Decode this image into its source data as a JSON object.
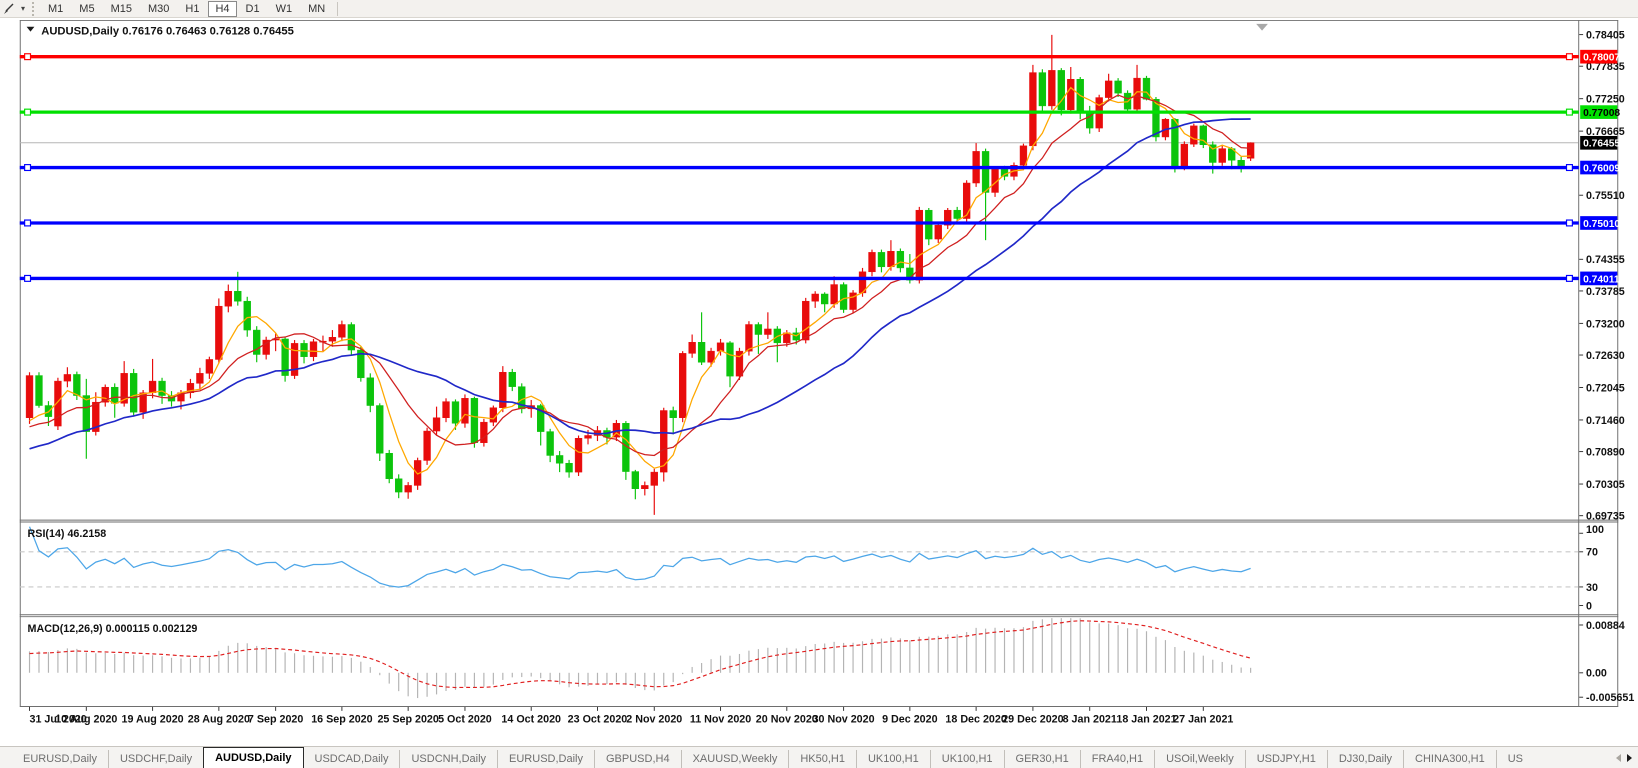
{
  "toolbar": {
    "timeframes": [
      "M1",
      "M5",
      "M15",
      "M30",
      "H1",
      "H4",
      "D1",
      "W1",
      "MN"
    ],
    "active_timeframe": "H4"
  },
  "chart": {
    "symbol_title": "AUDUSD,Daily  0.76176 0.76463 0.76128 0.76455",
    "symbol": "AUDUSD,Daily",
    "open": "0.76176",
    "high": "0.76463",
    "low": "0.76128",
    "close": "0.76455"
  },
  "price_axis": {
    "ticks": [
      "0.78405",
      "0.77835",
      "0.77250",
      "0.76665",
      "0.75510",
      "0.74355",
      "0.73785",
      "0.73200",
      "0.72630",
      "0.72045",
      "0.71460",
      "0.70890",
      "0.70305",
      "0.69735"
    ],
    "current_price_label": "0.76455"
  },
  "levels": [
    {
      "name": "resistance-1",
      "price": 0.78007,
      "label": "0.78007",
      "color": "#fe0000",
      "text_color": "#ffffff"
    },
    {
      "name": "resistance-2",
      "price": 0.77008,
      "label": "0.77008",
      "color": "#00e000",
      "text_color": "#000000"
    },
    {
      "name": "support-1",
      "price": 0.76009,
      "label": "0.76009",
      "color": "#0000fe",
      "text_color": "#ffffff"
    },
    {
      "name": "support-2",
      "price": 0.7501,
      "label": "0.75010",
      "color": "#0000fe",
      "text_color": "#ffffff"
    },
    {
      "name": "support-3",
      "price": 0.74011,
      "label": "0.74011",
      "color": "#0000fe",
      "text_color": "#ffffff"
    }
  ],
  "time_axis": {
    "labels": [
      {
        "label": "31 Jul 2020",
        "index": 0
      },
      {
        "label": "10 Aug 2020",
        "index": 6
      },
      {
        "label": "19 Aug 2020",
        "index": 13
      },
      {
        "label": "28 Aug 2020",
        "index": 20
      },
      {
        "label": "7 Sep 2020",
        "index": 26
      },
      {
        "label": "16 Sep 2020",
        "index": 33
      },
      {
        "label": "25 Sep 2020",
        "index": 40
      },
      {
        "label": "5 Oct 2020",
        "index": 46
      },
      {
        "label": "14 Oct 2020",
        "index": 53
      },
      {
        "label": "23 Oct 2020",
        "index": 60
      },
      {
        "label": "2 Nov 2020",
        "index": 66
      },
      {
        "label": "11 Nov 2020",
        "index": 73
      },
      {
        "label": "20 Nov 2020",
        "index": 80
      },
      {
        "label": "30 Nov 2020",
        "index": 86
      },
      {
        "label": "9 Dec 2020",
        "index": 93
      },
      {
        "label": "18 Dec 2020",
        "index": 100
      },
      {
        "label": "29 Dec 2020",
        "index": 106
      },
      {
        "label": "8 Jan 2021",
        "index": 112
      },
      {
        "label": "18 Jan 2021",
        "index": 118
      },
      {
        "label": "27 Jan 2021",
        "index": 124
      }
    ]
  },
  "rsi_panel": {
    "label": "RSI(14) 46.2158",
    "indicator": "RSI",
    "period": 14,
    "value": "46.2158",
    "axis_labels": [
      "100",
      "70",
      "30",
      "0"
    ],
    "upper_level": 70,
    "lower_level": 30
  },
  "macd_panel": {
    "label": "MACD(12,26,9) 0.000115 0.002129",
    "indicator": "MACD",
    "params": "12,26,9",
    "macd_value": "0.000115",
    "signal_value": "0.002129",
    "axis_labels": [
      "0.00884",
      "0.00",
      "-0.005651"
    ]
  },
  "tabs": {
    "items": [
      "EURUSD,Daily",
      "USDCHF,Daily",
      "AUDUSD,Daily",
      "USDCAD,Daily",
      "USDCNH,Daily",
      "EURUSD,Daily",
      "GBPUSD,H4",
      "XAUUSD,Weekly",
      "HK50,H1",
      "UK100,H1",
      "UK100,H1",
      "GER30,H1",
      "FRA40,H1",
      "USOil,Weekly",
      "USDJPY,H1",
      "DJ30,Daily",
      "CHINA300,H1",
      "US"
    ],
    "active_index": 2
  },
  "colors": {
    "bull": "#e80c0c",
    "bear": "#0cc40c",
    "ma_fast": "#ffa800",
    "ma_medium": "#d02020",
    "ma_slow": "#2028c8",
    "rsi_line": "#4da6e8",
    "rsi_levels": "#c8c8c8",
    "macd_histogram": "#b4b4b4",
    "macd_signal": "#e02020",
    "price_line": "#b6b6b6",
    "price_label_bg": "#000000",
    "panel_border": "#6e6e6e"
  },
  "chart_data": {
    "type": "candlestick",
    "title": "AUDUSD Daily",
    "symbol": "AUDUSD",
    "timeframe": "Daily",
    "color_convention": "red = bullish (up), green = bearish (down)",
    "price_range": [
      0.69735,
      0.78405
    ],
    "horizontal_lines": [
      0.78007,
      0.77008,
      0.76009,
      0.7501,
      0.74011
    ],
    "current_price": 0.76455,
    "moving_averages": [
      {
        "name": "fast",
        "period": 5,
        "color": "#ffa800"
      },
      {
        "name": "medium",
        "period": 10,
        "color": "#d02020"
      },
      {
        "name": "slow",
        "period": 24,
        "color": "#2028c8"
      }
    ],
    "indicators": [
      {
        "name": "RSI",
        "period": 14,
        "last_value": 46.2158
      },
      {
        "name": "MACD",
        "fast": 12,
        "slow": 26,
        "signal": 9,
        "last_macd": 0.000115,
        "last_signal": 0.002129
      }
    ],
    "candles_ohlc": [
      [
        0.715,
        0.7232,
        0.7139,
        0.7226
      ],
      [
        0.7226,
        0.7232,
        0.7168,
        0.7172
      ],
      [
        0.7172,
        0.718,
        0.7135,
        0.7152
      ],
      [
        0.7135,
        0.7222,
        0.7128,
        0.7216
      ],
      [
        0.7216,
        0.7241,
        0.7205,
        0.7228
      ],
      [
        0.7228,
        0.7233,
        0.7182,
        0.719
      ],
      [
        0.719,
        0.722,
        0.7076,
        0.7125
      ],
      [
        0.7125,
        0.7196,
        0.7118,
        0.7178
      ],
      [
        0.7178,
        0.721,
        0.717,
        0.7205
      ],
      [
        0.7205,
        0.7212,
        0.715,
        0.7176
      ],
      [
        0.7176,
        0.7252,
        0.717,
        0.723
      ],
      [
        0.723,
        0.7238,
        0.7152,
        0.716
      ],
      [
        0.716,
        0.72,
        0.7148,
        0.7195
      ],
      [
        0.7195,
        0.7256,
        0.7185,
        0.7216
      ],
      [
        0.7216,
        0.7222,
        0.7175,
        0.719
      ],
      [
        0.719,
        0.7198,
        0.717,
        0.718
      ],
      [
        0.718,
        0.72,
        0.7165,
        0.7195
      ],
      [
        0.7195,
        0.722,
        0.7185,
        0.7212
      ],
      [
        0.7212,
        0.724,
        0.72,
        0.723
      ],
      [
        0.723,
        0.726,
        0.722,
        0.7255
      ],
      [
        0.7255,
        0.7365,
        0.7248,
        0.7351
      ],
      [
        0.7351,
        0.739,
        0.734,
        0.7378
      ],
      [
        0.7378,
        0.7413,
        0.7352,
        0.736
      ],
      [
        0.736,
        0.7368,
        0.7296,
        0.7308
      ],
      [
        0.7308,
        0.7315,
        0.725,
        0.7264
      ],
      [
        0.7264,
        0.7296,
        0.7255,
        0.729
      ],
      [
        0.729,
        0.7302,
        0.727,
        0.7292
      ],
      [
        0.7292,
        0.7295,
        0.7215,
        0.7226
      ],
      [
        0.7226,
        0.729,
        0.722,
        0.7284
      ],
      [
        0.7284,
        0.729,
        0.7248,
        0.726
      ],
      [
        0.726,
        0.7292,
        0.7252,
        0.7287
      ],
      [
        0.7287,
        0.7298,
        0.727,
        0.7288
      ],
      [
        0.7288,
        0.7308,
        0.7278,
        0.7295
      ],
      [
        0.7295,
        0.7325,
        0.7288,
        0.7318
      ],
      [
        0.7318,
        0.7322,
        0.7262,
        0.7272
      ],
      [
        0.7272,
        0.7278,
        0.7215,
        0.7222
      ],
      [
        0.7222,
        0.723,
        0.716,
        0.7172
      ],
      [
        0.7172,
        0.7176,
        0.7072,
        0.7086
      ],
      [
        0.7086,
        0.7092,
        0.7032,
        0.704
      ],
      [
        0.704,
        0.7048,
        0.7005,
        0.7016
      ],
      [
        0.7016,
        0.7034,
        0.7004,
        0.7028
      ],
      [
        0.7028,
        0.7078,
        0.702,
        0.7073
      ],
      [
        0.7073,
        0.7132,
        0.7065,
        0.7126
      ],
      [
        0.7126,
        0.717,
        0.7118,
        0.715
      ],
      [
        0.715,
        0.7185,
        0.7142,
        0.7179
      ],
      [
        0.7179,
        0.7183,
        0.7128,
        0.714
      ],
      [
        0.714,
        0.7192,
        0.7132,
        0.7185
      ],
      [
        0.7185,
        0.7188,
        0.7096,
        0.7105
      ],
      [
        0.7105,
        0.7148,
        0.7098,
        0.7142
      ],
      [
        0.7142,
        0.7172,
        0.7135,
        0.7168
      ],
      [
        0.7168,
        0.7243,
        0.716,
        0.7232
      ],
      [
        0.7232,
        0.7238,
        0.7198,
        0.7206
      ],
      [
        0.7206,
        0.7212,
        0.7158,
        0.7166
      ],
      [
        0.7166,
        0.7182,
        0.715,
        0.7172
      ],
      [
        0.7172,
        0.7175,
        0.71,
        0.7125
      ],
      [
        0.7125,
        0.713,
        0.707,
        0.7082
      ],
      [
        0.7082,
        0.709,
        0.7052,
        0.7068
      ],
      [
        0.7068,
        0.7074,
        0.7042,
        0.7052
      ],
      [
        0.7052,
        0.7118,
        0.7045,
        0.7113
      ],
      [
        0.7113,
        0.7128,
        0.7102,
        0.7118
      ],
      [
        0.7118,
        0.7135,
        0.7108,
        0.7127
      ],
      [
        0.7127,
        0.7132,
        0.7102,
        0.7115
      ],
      [
        0.7115,
        0.7146,
        0.7108,
        0.714
      ],
      [
        0.714,
        0.7144,
        0.7038,
        0.7053
      ],
      [
        0.7053,
        0.7056,
        0.7003,
        0.7022
      ],
      [
        0.7022,
        0.7035,
        0.701,
        0.7028
      ],
      [
        0.7028,
        0.7058,
        0.6975,
        0.7052
      ],
      [
        0.7052,
        0.7168,
        0.7035,
        0.7163
      ],
      [
        0.7163,
        0.717,
        0.712,
        0.715
      ],
      [
        0.715,
        0.727,
        0.7142,
        0.7266
      ],
      [
        0.7266,
        0.73,
        0.7258,
        0.7286
      ],
      [
        0.7286,
        0.734,
        0.7245,
        0.725
      ],
      [
        0.725,
        0.7276,
        0.7242,
        0.727
      ],
      [
        0.727,
        0.7292,
        0.7262,
        0.7285
      ],
      [
        0.7285,
        0.7288,
        0.7205,
        0.7225
      ],
      [
        0.7225,
        0.7276,
        0.7218,
        0.727
      ],
      [
        0.727,
        0.7324,
        0.7262,
        0.7318
      ],
      [
        0.7318,
        0.7322,
        0.7265,
        0.73
      ],
      [
        0.73,
        0.734,
        0.7292,
        0.731
      ],
      [
        0.731,
        0.7315,
        0.725,
        0.7285
      ],
      [
        0.7285,
        0.7308,
        0.7278,
        0.7303
      ],
      [
        0.7303,
        0.7312,
        0.7282,
        0.729
      ],
      [
        0.729,
        0.7366,
        0.7284,
        0.736
      ],
      [
        0.736,
        0.7378,
        0.7348,
        0.7373
      ],
      [
        0.7373,
        0.7376,
        0.734,
        0.7355
      ],
      [
        0.7355,
        0.7405,
        0.7348,
        0.739
      ],
      [
        0.739,
        0.7394,
        0.7339,
        0.7345
      ],
      [
        0.7345,
        0.738,
        0.7338,
        0.7375
      ],
      [
        0.7375,
        0.742,
        0.7368,
        0.7413
      ],
      [
        0.7413,
        0.7453,
        0.7405,
        0.7448
      ],
      [
        0.7448,
        0.7453,
        0.7412,
        0.7422
      ],
      [
        0.7422,
        0.747,
        0.7415,
        0.745
      ],
      [
        0.745,
        0.7455,
        0.7412,
        0.742
      ],
      [
        0.742,
        0.7445,
        0.7392,
        0.7398
      ],
      [
        0.7398,
        0.753,
        0.7392,
        0.7524
      ],
      [
        0.7524,
        0.7528,
        0.7461,
        0.7472
      ],
      [
        0.7472,
        0.7502,
        0.7465,
        0.7497
      ],
      [
        0.7497,
        0.7528,
        0.749,
        0.7524
      ],
      [
        0.7524,
        0.753,
        0.7502,
        0.7509
      ],
      [
        0.7509,
        0.7578,
        0.7502,
        0.7573
      ],
      [
        0.7573,
        0.7645,
        0.7566,
        0.763
      ],
      [
        0.763,
        0.7635,
        0.747,
        0.7556
      ],
      [
        0.7556,
        0.7602,
        0.7548,
        0.7598
      ],
      [
        0.7598,
        0.7604,
        0.7578,
        0.7585
      ],
      [
        0.7585,
        0.761,
        0.7578,
        0.7605
      ],
      [
        0.7605,
        0.7644,
        0.7598,
        0.764
      ],
      [
        0.764,
        0.7786,
        0.7632,
        0.7772
      ],
      [
        0.7772,
        0.7778,
        0.7703,
        0.7712
      ],
      [
        0.7712,
        0.784,
        0.7705,
        0.7776
      ],
      [
        0.7776,
        0.778,
        0.7695,
        0.7705
      ],
      [
        0.7705,
        0.7782,
        0.7698,
        0.776
      ],
      [
        0.776,
        0.7764,
        0.7688,
        0.77
      ],
      [
        0.77,
        0.7712,
        0.7662,
        0.7672
      ],
      [
        0.7672,
        0.7732,
        0.7665,
        0.7727
      ],
      [
        0.7727,
        0.777,
        0.772,
        0.7757
      ],
      [
        0.7757,
        0.7762,
        0.7728,
        0.7735
      ],
      [
        0.7735,
        0.774,
        0.77,
        0.7706
      ],
      [
        0.7706,
        0.7786,
        0.77,
        0.7762
      ],
      [
        0.7762,
        0.7766,
        0.7722,
        0.7724
      ],
      [
        0.7724,
        0.7728,
        0.7648,
        0.7656
      ],
      [
        0.7656,
        0.769,
        0.765,
        0.7688
      ],
      [
        0.7688,
        0.769,
        0.7592,
        0.76
      ],
      [
        0.76,
        0.7648,
        0.7596,
        0.7643
      ],
      [
        0.7643,
        0.768,
        0.7638,
        0.7676
      ],
      [
        0.7676,
        0.7678,
        0.7636,
        0.7642
      ],
      [
        0.7642,
        0.7648,
        0.759,
        0.761
      ],
      [
        0.761,
        0.764,
        0.7604,
        0.7635
      ],
      [
        0.7635,
        0.7638,
        0.7598,
        0.7614
      ],
      [
        0.7614,
        0.762,
        0.7592,
        0.7604
      ],
      [
        0.76176,
        0.76463,
        0.76128,
        0.76455
      ]
    ]
  }
}
